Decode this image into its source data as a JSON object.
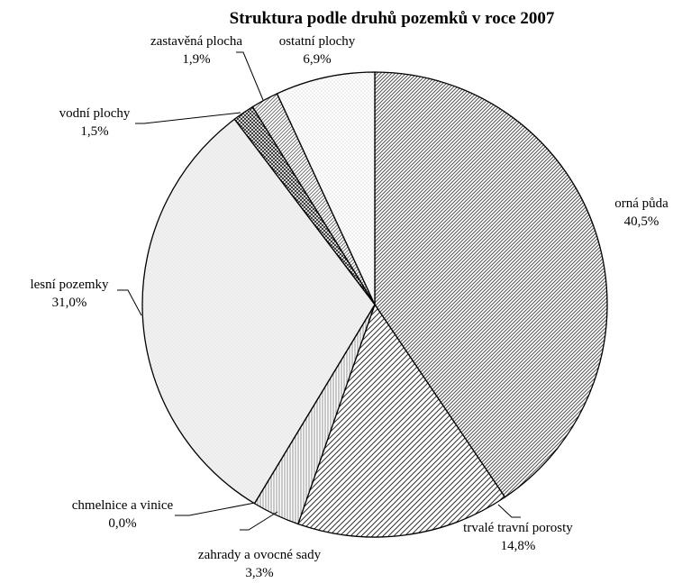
{
  "chart_data": {
    "type": "pie",
    "title": "Struktura podle druhů pozemků v roce 2007",
    "start_angle_deg": 0,
    "direction": "clockwise",
    "slices": [
      {
        "label": "orná půda",
        "value_label": "40,5%",
        "value": 40.5,
        "fill": "diag-dense"
      },
      {
        "label": "trvalé travní porosty",
        "value_label": "14,8%",
        "value": 14.8,
        "fill": "diag-sparse"
      },
      {
        "label": "zahrady a ovocné sady",
        "value_label": "3,3%",
        "value": 3.3,
        "fill": "vertical"
      },
      {
        "label": "chmelnice a vinice",
        "value_label": "0,0%",
        "value": 0.0,
        "fill": "none"
      },
      {
        "label": "lesní pozemky",
        "value_label": "31,0%",
        "value": 31.0,
        "fill": "light-dots"
      },
      {
        "label": "vodní plochy",
        "value_label": "1,5%",
        "value": 1.5,
        "fill": "crosshatch"
      },
      {
        "label": "zastavěná plocha",
        "value_label": "1,9%",
        "value": 1.9,
        "fill": "diag-medium"
      },
      {
        "label": "ostatní plochy",
        "value_label": "6,9%",
        "value": 6.9,
        "fill": "fine-dots"
      }
    ],
    "legend": "none"
  }
}
